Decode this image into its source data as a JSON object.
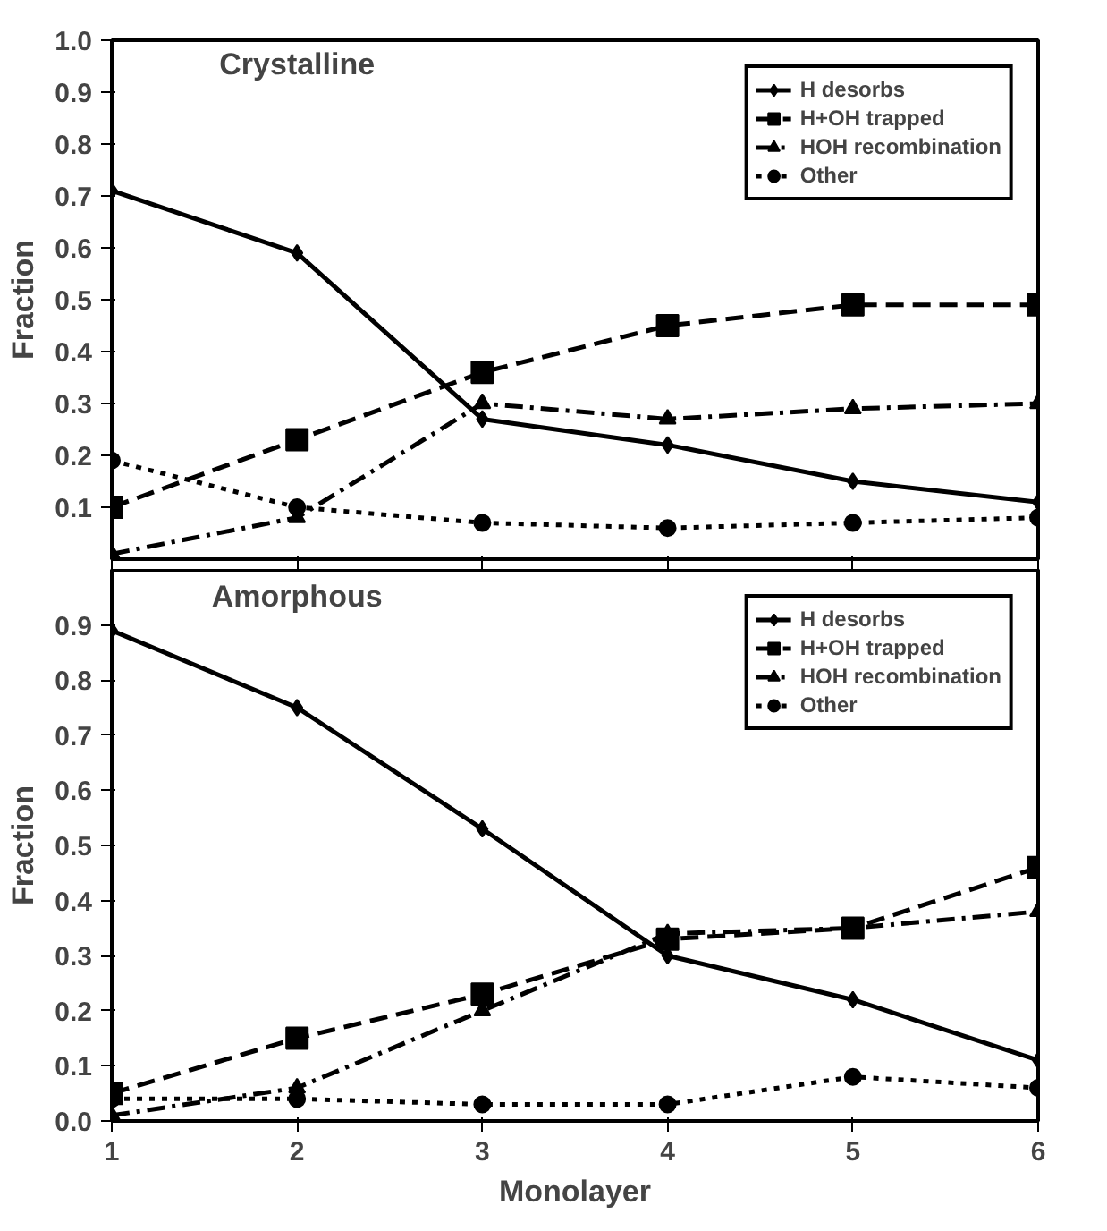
{
  "chart_data": [
    {
      "type": "line",
      "title": "Crystalline",
      "ylabel": "Fraction",
      "x": [
        1,
        2,
        3,
        4,
        5,
        6
      ],
      "xlim": [
        1,
        6
      ],
      "xticks": [
        1,
        2,
        3,
        4,
        5,
        6
      ],
      "ylim": [
        0,
        1
      ],
      "yticks": [
        0.1,
        0.2,
        0.3,
        0.4,
        0.5,
        0.6,
        0.7,
        0.8,
        0.9,
        {
          "value": 1,
          "label": "1.0"
        }
      ],
      "tick_labels": "y",
      "grid": false,
      "legend": "top right",
      "series": [
        {
          "name": "H desorbs",
          "color": "#000000",
          "marker": "diamond",
          "line_style": "solid",
          "values": [
            0.71,
            0.59,
            0.27,
            0.22,
            0.15,
            0.11
          ]
        },
        {
          "name": "H+OH trapped",
          "color": "#000000",
          "marker": "square",
          "line_style": "dashed",
          "values": [
            0.1,
            0.23,
            0.36,
            0.45,
            0.49,
            0.49
          ]
        },
        {
          "name": "HOH recombination",
          "color": "#000000",
          "marker": "triangle",
          "line_style": "dashdot",
          "values": [
            0.01,
            0.08,
            0.3,
            0.27,
            0.29,
            0.3
          ]
        },
        {
          "name": "Other",
          "color": "#000000",
          "marker": "circle",
          "line_style": "dotted",
          "values": [
            0.19,
            0.1,
            0.07,
            0.06,
            0.07,
            0.08
          ]
        }
      ]
    },
    {
      "type": "line",
      "title": "Amorphous",
      "ylabel": "Fraction",
      "xlabel": "Monolayer",
      "x": [
        1,
        2,
        3,
        4,
        5,
        6
      ],
      "xlim": [
        1,
        6
      ],
      "xticks": [
        1,
        2,
        3,
        4,
        5,
        6
      ],
      "ylim": [
        0,
        1
      ],
      "yticks": [
        {
          "value": 0,
          "label": "0.0"
        },
        0.1,
        0.2,
        0.3,
        0.4,
        0.5,
        0.6,
        0.7,
        0.8,
        0.9
      ],
      "grid": false,
      "legend": "top right",
      "series": [
        {
          "name": "H desorbs",
          "color": "#000000",
          "marker": "diamond",
          "line_style": "solid",
          "values": [
            0.89,
            0.75,
            0.53,
            0.3,
            0.22,
            0.11
          ]
        },
        {
          "name": "H+OH trapped",
          "color": "#000000",
          "marker": "square",
          "line_style": "dashed",
          "values": [
            0.05,
            0.15,
            0.23,
            0.33,
            0.35,
            0.46
          ]
        },
        {
          "name": "HOH recombination",
          "color": "#000000",
          "marker": "triangle",
          "line_style": "dashdot",
          "values": [
            0.01,
            0.06,
            0.2,
            0.34,
            0.35,
            0.38
          ]
        },
        {
          "name": "Other",
          "color": "#000000",
          "marker": "circle",
          "line_style": "dotted",
          "values": [
            0.04,
            0.04,
            0.03,
            0.03,
            0.08,
            0.06
          ]
        }
      ]
    }
  ]
}
